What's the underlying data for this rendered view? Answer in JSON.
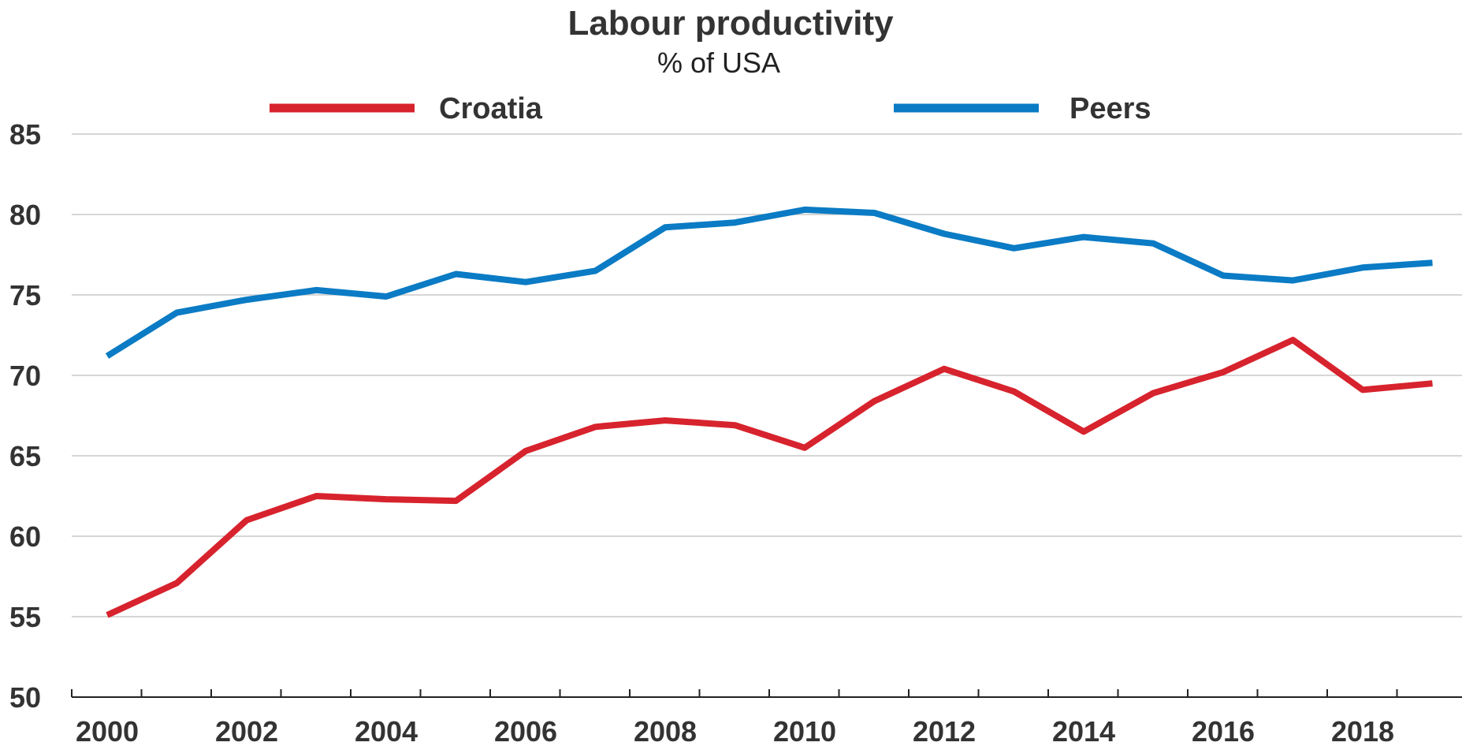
{
  "chart_data": {
    "type": "line",
    "title": "Labour productivity",
    "subtitle": "% of USA",
    "xlabel": "",
    "ylabel": "",
    "x": [
      2000,
      2001,
      2002,
      2003,
      2004,
      2005,
      2006,
      2007,
      2008,
      2009,
      2010,
      2011,
      2012,
      2013,
      2014,
      2015,
      2016,
      2017,
      2018,
      2019
    ],
    "x_tick_labels": [
      "2000",
      "2002",
      "2004",
      "2006",
      "2008",
      "2010",
      "2012",
      "2014",
      "2016",
      "2018"
    ],
    "ylim": [
      50,
      85
    ],
    "y_ticks": [
      50,
      55,
      60,
      65,
      70,
      75,
      80,
      85
    ],
    "grid": true,
    "legend_position": "top",
    "series": [
      {
        "name": "Croatia",
        "color": "#d7232d",
        "values": [
          55.1,
          57.1,
          61.0,
          62.5,
          62.3,
          62.2,
          65.3,
          66.8,
          67.2,
          66.9,
          65.5,
          68.4,
          70.4,
          69.0,
          66.5,
          68.9,
          70.2,
          72.2,
          69.1,
          69.5
        ]
      },
      {
        "name": "Peers",
        "color": "#0a7bc4",
        "values": [
          71.2,
          73.9,
          74.7,
          75.3,
          74.9,
          76.3,
          75.8,
          76.5,
          79.2,
          79.5,
          80.3,
          80.1,
          78.8,
          77.9,
          78.6,
          78.2,
          76.2,
          75.9,
          76.7,
          77.0
        ]
      }
    ]
  }
}
